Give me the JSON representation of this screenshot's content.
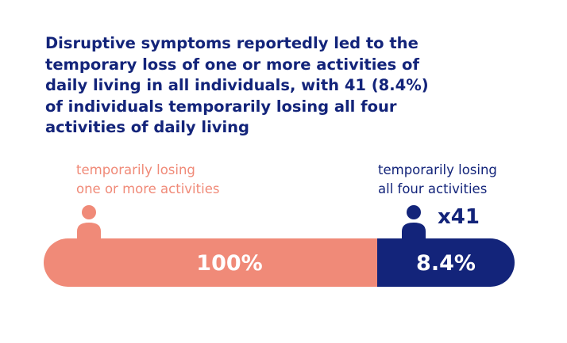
{
  "headline": {
    "lines": [
      "Disruptive symptoms reportedly led to the",
      "temporary loss of one or more activities of",
      "daily living in all individuals, with 41 (8.4%)",
      "of individuals temporarily losing all four",
      "activities of daily living"
    ]
  },
  "labels": {
    "left": [
      "temporarily losing",
      "one or more activities"
    ],
    "right": [
      "temporarily losing",
      "all four activities"
    ]
  },
  "count_label": "x41",
  "colors": {
    "salmon": "#f08a78",
    "navy": "#13247a",
    "white": "#ffffff"
  },
  "icons": {
    "left": "person-icon",
    "right": "person-icon"
  },
  "chart_data": {
    "type": "bar",
    "orientation": "horizontal",
    "categories": [
      "temporarily losing one or more activities",
      "temporarily losing all four activities"
    ],
    "values": [
      100,
      8.4
    ],
    "value_labels": [
      "100%",
      "8.4%"
    ],
    "unit": "%",
    "colors": [
      "#f08a78",
      "#13247a"
    ],
    "count": 41
  }
}
